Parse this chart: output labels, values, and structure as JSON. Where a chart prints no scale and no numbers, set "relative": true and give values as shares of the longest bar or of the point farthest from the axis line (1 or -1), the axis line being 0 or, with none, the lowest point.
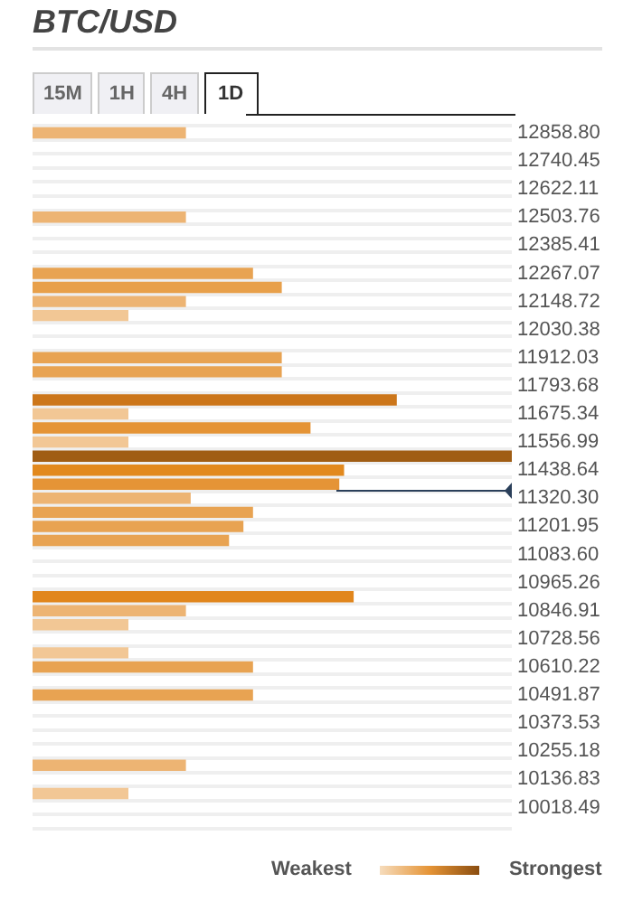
{
  "chart_data": {
    "type": "bar",
    "orientation": "horizontal",
    "relative": true,
    "title": "BTC/USD",
    "annotations": [
      "15M",
      "1H",
      "4H",
      "1D",
      "Weakest",
      "Strongest"
    ],
    "categories": [
      "12858.80",
      null,
      "12740.45",
      null,
      "12622.11",
      null,
      "12503.76",
      null,
      "12385.41",
      null,
      "12267.07",
      null,
      "12148.72",
      null,
      "12030.38",
      null,
      "11912.03",
      null,
      "11793.68",
      null,
      "11675.34",
      null,
      "11556.99",
      null,
      "11438.64",
      null,
      "11320.30",
      null,
      "11201.95",
      null,
      "11083.60",
      null,
      "10965.26",
      null,
      "10846.91",
      null,
      "10728.56",
      null,
      "10610.22",
      null,
      "10491.87",
      null,
      "10373.53",
      null,
      "10255.18",
      null,
      "10136.83",
      null,
      "10018.49",
      null
    ],
    "values": [
      0.32,
      null,
      null,
      null,
      null,
      null,
      0.32,
      null,
      null,
      null,
      0.46,
      0.52,
      0.32,
      0.2,
      null,
      null,
      0.52,
      0.52,
      null,
      0.76,
      0.2,
      0.58,
      0.2,
      1,
      0.65,
      0.64,
      0.33,
      0.46,
      0.44,
      0.41,
      null,
      null,
      null,
      0.67,
      0.32,
      0.2,
      null,
      0.2,
      0.46,
      null,
      0.46,
      null,
      null,
      null,
      null,
      0.32,
      null,
      0.2,
      null,
      null
    ],
    "colors": [
      "#edb473",
      null,
      null,
      null,
      null,
      null,
      "#edb473",
      null,
      null,
      null,
      "#e8a352",
      "#e8a04a",
      "#edb473",
      "#f2c795",
      null,
      null,
      "#e8a352",
      "#e8a352",
      null,
      "#cc761a",
      "#f2c795",
      "#e59436",
      "#f2c795",
      "#a05d14",
      "#e2891e",
      "#e59436",
      "#edb473",
      "#e8a352",
      "#e8a352",
      "#e8a352",
      null,
      null,
      null,
      "#e1861c",
      "#edb473",
      "#f2c795",
      null,
      "#f2c795",
      "#e8a352",
      null,
      "#e8a352",
      null,
      null,
      null,
      null,
      "#edb473",
      null,
      "#f2c795",
      null,
      null
    ],
    "grid": "y",
    "legend": false
  }
}
